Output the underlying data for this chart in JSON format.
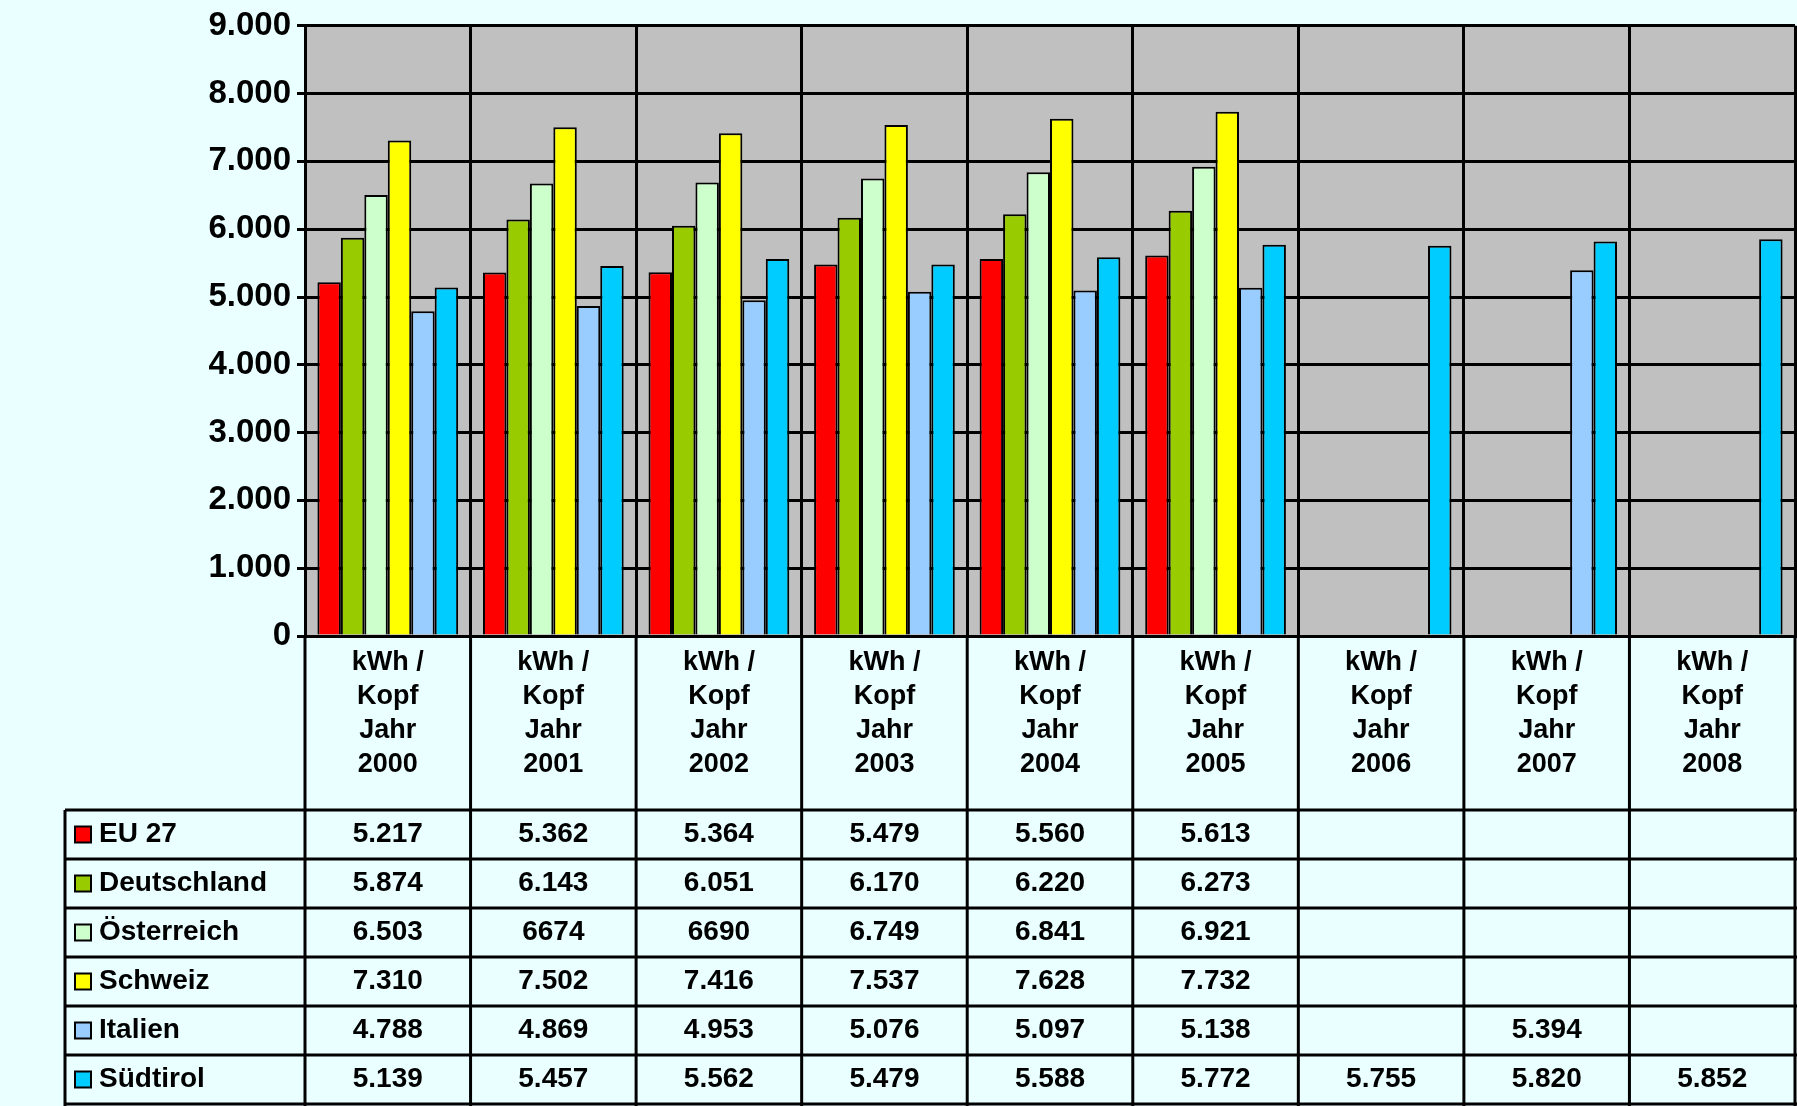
{
  "chart_data": {
    "type": "bar",
    "categories": [
      "kWh /\nKopf\nJahr\n2000",
      "kWh /\nKopf\nJahr\n2001",
      "kWh /\nKopf\nJahr\n2002",
      "kWh /\nKopf\nJahr\n2003",
      "kWh /\nKopf\nJahr\n2004",
      "kWh /\nKopf\nJahr\n2005",
      "kWh /\nKopf\nJahr\n2006",
      "kWh /\nKopf\nJahr\n2007",
      "kWh /\nKopf\nJahr\n2008"
    ],
    "series": [
      {
        "name": "EU 27",
        "color": "#ff0000",
        "values": [
          5217,
          5362,
          5364,
          5479,
          5560,
          5613,
          null,
          null,
          null
        ],
        "value_labels": [
          "5.217",
          "5.362",
          "5.364",
          "5.479",
          "5.560",
          "5.613",
          null,
          null,
          null
        ]
      },
      {
        "name": "Deutschland",
        "color": "#99cc00",
        "values": [
          5874,
          6143,
          6051,
          6170,
          6220,
          6273,
          null,
          null,
          null
        ],
        "value_labels": [
          "5.874",
          "6.143",
          "6.051",
          "6.170",
          "6.220",
          "6.273",
          null,
          null,
          null
        ]
      },
      {
        "name": "Österreich",
        "color": "#ccffcc",
        "values": [
          6503,
          6674,
          6690,
          6749,
          6841,
          6921,
          null,
          null,
          null
        ],
        "value_labels": [
          "6.503",
          "6674",
          "6690",
          "6.749",
          "6.841",
          "6.921",
          null,
          null,
          null
        ]
      },
      {
        "name": "Schweiz",
        "color": "#ffff00",
        "values": [
          7310,
          7502,
          7416,
          7537,
          7628,
          7732,
          null,
          null,
          null
        ],
        "value_labels": [
          "7.310",
          "7.502",
          "7.416",
          "7.537",
          "7.628",
          "7.732",
          null,
          null,
          null
        ]
      },
      {
        "name": "Italien",
        "color": "#99ccff",
        "values": [
          4788,
          4869,
          4953,
          5076,
          5097,
          5138,
          null,
          5394,
          null
        ],
        "value_labels": [
          "4.788",
          "4.869",
          "4.953",
          "5.076",
          "5.097",
          "5.138",
          null,
          "5.394",
          null
        ]
      },
      {
        "name": "Südtirol",
        "color": "#00ccff",
        "values": [
          5139,
          5457,
          5562,
          5479,
          5588,
          5772,
          5755,
          5820,
          5852
        ],
        "value_labels": [
          "5.139",
          "5.457",
          "5.562",
          "5.479",
          "5.588",
          "5.772",
          "5.755",
          "5.820",
          "5.852"
        ]
      }
    ],
    "ylim": [
      0,
      9000
    ],
    "yticks": [
      {
        "value": 0,
        "label": "0"
      },
      {
        "value": 1000,
        "label": "1.000"
      },
      {
        "value": 2000,
        "label": "2.000"
      },
      {
        "value": 3000,
        "label": "3.000"
      },
      {
        "value": 4000,
        "label": "4.000"
      },
      {
        "value": 5000,
        "label": "5.000"
      },
      {
        "value": 6000,
        "label": "6.000"
      },
      {
        "value": 7000,
        "label": "7.000"
      },
      {
        "value": 8000,
        "label": "8.000"
      },
      {
        "value": 9000,
        "label": "9.000"
      }
    ],
    "grid": true,
    "legend": "bottom left"
  }
}
